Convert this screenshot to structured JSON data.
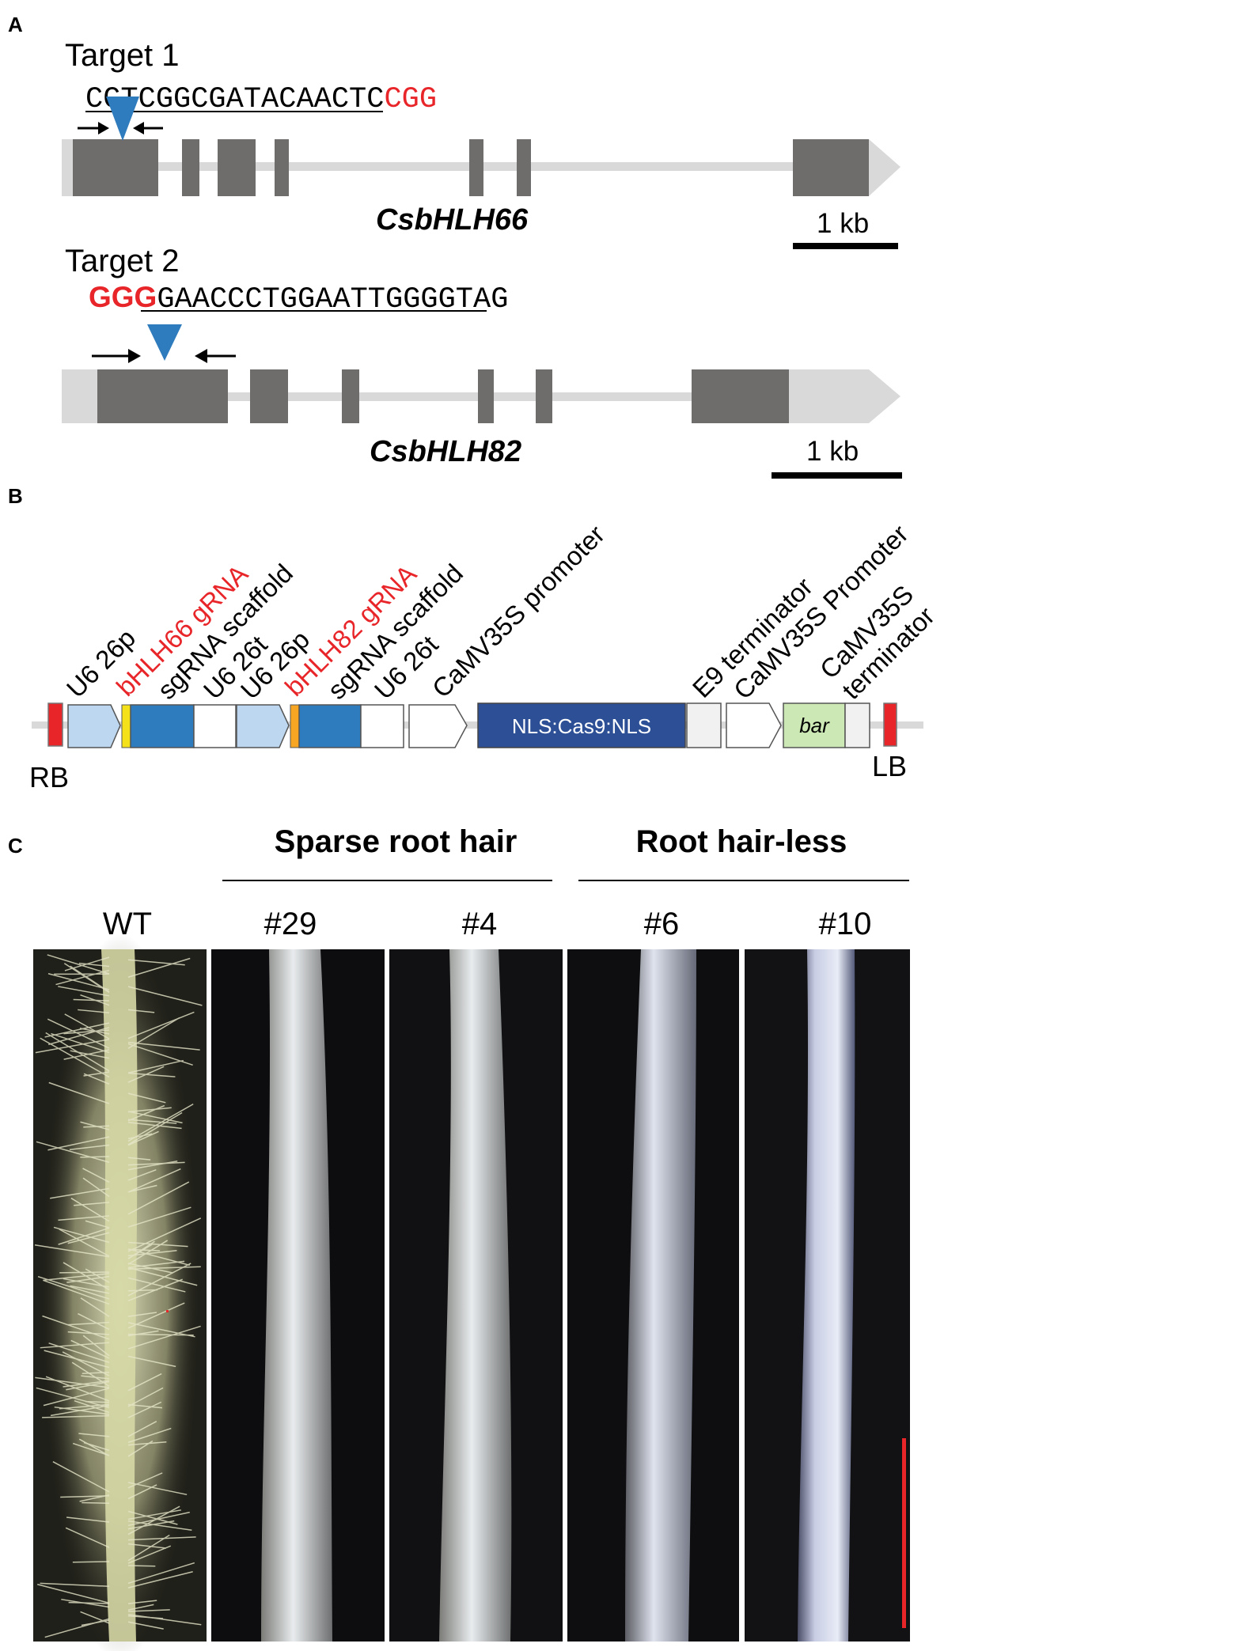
{
  "colors": {
    "exon": "#6f6c6c",
    "utr": "#d9d9d9",
    "intron": "#d9d9d9",
    "pam_red": "#e8262a",
    "cut_triangle": "#2e7bbd",
    "u6p_fill": "#bcd7ef",
    "scaffold_fill": "#2e7bbd",
    "cas9_fill": "#2c4f96",
    "bar_fill": "#cce8b5",
    "border_red": "#e8262a",
    "gRNA66_tag": "#f5e11a",
    "gRNA82_tag": "#f6a623",
    "scale_bar_red": "#e8262a"
  },
  "panelA": {
    "letter": "A",
    "gene1": {
      "target_label": "Target 1",
      "sequence_main": "CGTCGGCGATACAACTC",
      "sequence_pam": "CGG",
      "gene_name": "CsbHLH66",
      "scale_label": "1 kb"
    },
    "gene2": {
      "target_label": "Target 2",
      "sequence_pam": "GGG",
      "sequence_main": "GAACCCTGGAATTGGGGTAG",
      "gene_name": "CsbHLH82",
      "scale_label": "1 kb"
    }
  },
  "panelB": {
    "letter": "B",
    "rb_label": "RB",
    "lb_label": "LB",
    "element_labels": {
      "u6p_1": "U6 26p",
      "grna66": "bHLH66 gRNA",
      "scaffold_1": "sgRNA scaffold",
      "u6t_1": "U6 26t",
      "u6p_2": "U6 26p",
      "grna82": "bHLH82 gRNA",
      "scaffold_2": "sgRNA scaffold",
      "u6t_2": "U6 26t",
      "camv_promoter_1": "CaMV35S promoter",
      "e9": "E9 terminator",
      "camv_promoter_2": "CaMV35S Promoter",
      "camv_term_line1": "CaMV35S",
      "camv_term_line2": "terminator"
    },
    "cas9_label": "NLS:Cas9:NLS",
    "bar_label": "bar"
  },
  "panelC": {
    "letter": "C",
    "group1_label": "Sparse root hair",
    "group2_label": "Root hair-less",
    "sample_labels": [
      "WT",
      "#29",
      "#4",
      "#6",
      "#10"
    ]
  }
}
